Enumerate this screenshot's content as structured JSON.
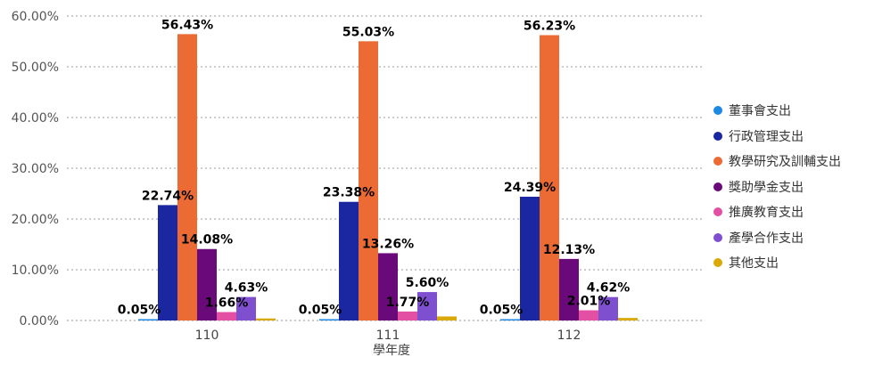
{
  "chart_data": {
    "type": "bar",
    "categories": [
      "110",
      "111",
      "112"
    ],
    "xlabel": "學年度",
    "ylabel": "",
    "ylim": [
      0,
      60
    ],
    "yticks": [
      "0.00%",
      "10.00%",
      "20.00%",
      "30.00%",
      "40.00%",
      "50.00%",
      "60.00%"
    ],
    "grid": true,
    "legend_position": "right",
    "series": [
      {
        "name": "董事會支出",
        "color": "#1e88e5",
        "values": [
          0.05,
          0.05,
          0.05
        ],
        "labels": [
          "0.05%",
          "0.05%",
          "0.05%"
        ]
      },
      {
        "name": "行政管理支出",
        "color": "#1a27a0",
        "values": [
          22.74,
          23.38,
          24.39
        ],
        "labels": [
          "22.74%",
          "23.38%",
          "24.39%"
        ]
      },
      {
        "name": "教學研究及訓輔支出",
        "color": "#ec6b35",
        "values": [
          56.43,
          55.03,
          56.23
        ],
        "labels": [
          "56.43%",
          "55.03%",
          "56.23%"
        ]
      },
      {
        "name": "獎助學金支出",
        "color": "#6a0a7a",
        "values": [
          14.08,
          13.26,
          12.13
        ],
        "labels": [
          "14.08%",
          "13.26%",
          "12.13%"
        ]
      },
      {
        "name": "推廣教育支出",
        "color": "#e34fa2",
        "values": [
          1.66,
          1.77,
          2.01
        ],
        "labels": [
          "1.66%",
          "1.77%",
          "2.01%"
        ]
      },
      {
        "name": "產學合作支出",
        "color": "#7e4fcf",
        "values": [
          4.63,
          5.6,
          4.62
        ],
        "labels": [
          "4.63%",
          "5.60%",
          "4.62%"
        ]
      },
      {
        "name": "其他支出",
        "color": "#d9a90a",
        "values": [
          0.4,
          0.8,
          0.5
        ],
        "labels": [
          null,
          null,
          null
        ]
      }
    ]
  }
}
